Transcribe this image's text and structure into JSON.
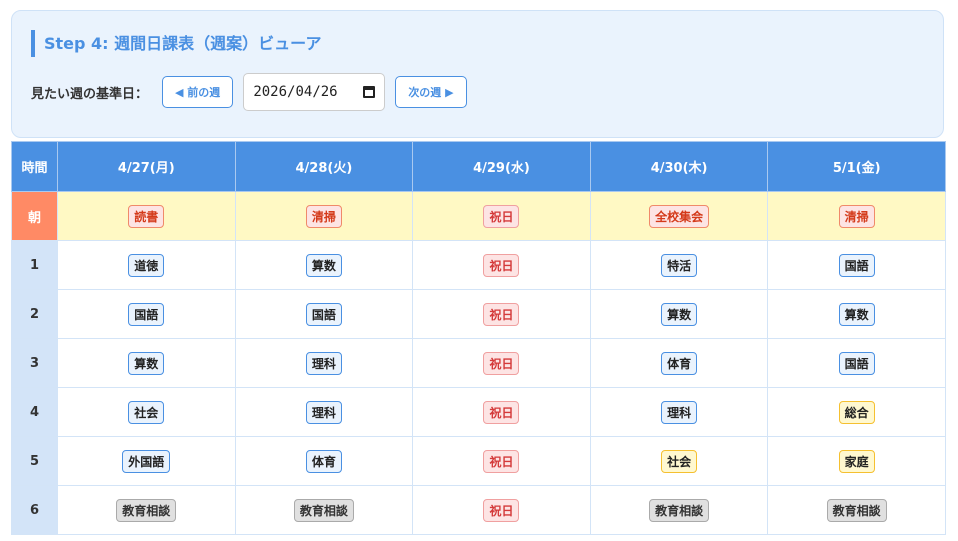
{
  "header": {
    "title": "Step 4: 週間日課表（週案）ビューア",
    "date_label": "見たい週の基準日：",
    "prev_label": "◀ 前の週",
    "date_value": "2026/04/26",
    "next_label": "次の週 ▶"
  },
  "table": {
    "time_header": "時間",
    "days": [
      "4/27(月)",
      "4/28(火)",
      "4/29(水)",
      "4/30(木)",
      "5/1(金)"
    ],
    "rows": [
      {
        "period": "朝",
        "morning": true,
        "cells": [
          {
            "text": "読書",
            "type": "morning"
          },
          {
            "text": "清掃",
            "type": "morning"
          },
          {
            "text": "祝日",
            "type": "holiday"
          },
          {
            "text": "全校集会",
            "type": "morning"
          },
          {
            "text": "清掃",
            "type": "morning"
          }
        ]
      },
      {
        "period": "1",
        "cells": [
          {
            "text": "道徳",
            "type": "subject"
          },
          {
            "text": "算数",
            "type": "subject"
          },
          {
            "text": "祝日",
            "type": "holiday"
          },
          {
            "text": "特活",
            "type": "subject"
          },
          {
            "text": "国語",
            "type": "subject"
          }
        ]
      },
      {
        "period": "2",
        "cells": [
          {
            "text": "国語",
            "type": "subject"
          },
          {
            "text": "国語",
            "type": "subject"
          },
          {
            "text": "祝日",
            "type": "holiday"
          },
          {
            "text": "算数",
            "type": "subject"
          },
          {
            "text": "算数",
            "type": "subject"
          }
        ]
      },
      {
        "period": "3",
        "cells": [
          {
            "text": "算数",
            "type": "subject"
          },
          {
            "text": "理科",
            "type": "subject"
          },
          {
            "text": "祝日",
            "type": "holiday"
          },
          {
            "text": "体育",
            "type": "subject"
          },
          {
            "text": "国語",
            "type": "subject"
          }
        ]
      },
      {
        "period": "4",
        "cells": [
          {
            "text": "社会",
            "type": "subject"
          },
          {
            "text": "理科",
            "type": "subject"
          },
          {
            "text": "祝日",
            "type": "holiday"
          },
          {
            "text": "理科",
            "type": "subject"
          },
          {
            "text": "総合",
            "type": "yellow"
          }
        ]
      },
      {
        "period": "5",
        "cells": [
          {
            "text": "外国語",
            "type": "subject"
          },
          {
            "text": "体育",
            "type": "subject"
          },
          {
            "text": "祝日",
            "type": "holiday"
          },
          {
            "text": "社会",
            "type": "yellow"
          },
          {
            "text": "家庭",
            "type": "yellow"
          }
        ]
      },
      {
        "period": "6",
        "cells": [
          {
            "text": "教育相談",
            "type": "gray"
          },
          {
            "text": "教育相談",
            "type": "gray"
          },
          {
            "text": "祝日",
            "type": "holiday"
          },
          {
            "text": "教育相談",
            "type": "gray"
          },
          {
            "text": "教育相談",
            "type": "gray"
          }
        ]
      }
    ]
  },
  "colors": {
    "accent": "#4a90e2",
    "morning_row": "#fff9c4",
    "morning_label": "#ff8a65",
    "holiday": "#d43a3a"
  }
}
